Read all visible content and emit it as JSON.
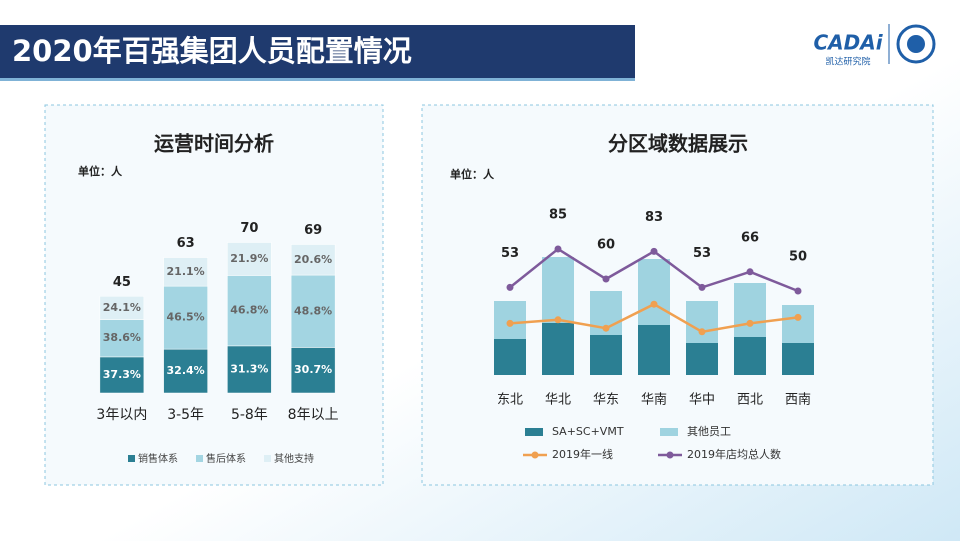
{
  "header": {
    "title": "2020年百强集团人员配置情况",
    "logo": "CADAi",
    "logo_sub": "凯达研究院"
  },
  "chart_data": [
    {
      "type": "bar",
      "title": "运营时间分析",
      "unit": "单位：人",
      "categories": [
        "3年以内",
        "3-5年",
        "5-8年",
        "8年以上"
      ],
      "totals": [
        45,
        63,
        70,
        69
      ],
      "series": [
        {
          "name": "销售体系",
          "color": "#2b7f93",
          "values": [
            37.3,
            32.4,
            31.3,
            30.7
          ],
          "value_labels": [
            "37.3%",
            "32.4%",
            "31.3%",
            "30.7%"
          ]
        },
        {
          "name": "售后体系",
          "color": "#a3d5e2",
          "values": [
            38.6,
            46.5,
            46.8,
            48.8
          ],
          "value_labels": [
            "38.6%",
            "46.5%",
            "46.8%",
            "48.8%"
          ]
        },
        {
          "name": "其他支持",
          "color": "#deeff5",
          "values": [
            24.1,
            21.1,
            21.9,
            20.6
          ],
          "value_labels": [
            "24.1%",
            "21.1%",
            "21.9%",
            "20.6%"
          ]
        }
      ],
      "ylim": [
        0,
        80
      ]
    },
    {
      "type": "combo",
      "title": "分区域数据展示",
      "unit": "单位：人",
      "categories": [
        "东北",
        "华北",
        "华东",
        "华南",
        "华中",
        "西北",
        "西南"
      ],
      "series": [
        {
          "name": "SA+SC+VMT",
          "type": "bar",
          "color": "#2b7f93",
          "values": [
            18,
            26,
            20,
            25,
            16,
            19,
            16
          ]
        },
        {
          "name": "其他员工",
          "type": "bar",
          "color": "#9fd3e0",
          "values": [
            19,
            33,
            22,
            33,
            21,
            27,
            19
          ]
        },
        {
          "name": "2019年一线",
          "type": "line",
          "axis": "y2",
          "color": "#f0a050",
          "values": [
            23,
            26,
            19,
            39,
            16,
            23,
            28
          ]
        },
        {
          "name": "2019年店均总人数",
          "type": "line",
          "axis": "y2",
          "color": "#7e5a9b",
          "values": [
            53,
            85,
            60,
            83,
            53,
            66,
            50
          ],
          "show_labels": true
        }
      ],
      "ylim": [
        0,
        90
      ],
      "y2lim": [
        -20,
        130
      ]
    }
  ]
}
